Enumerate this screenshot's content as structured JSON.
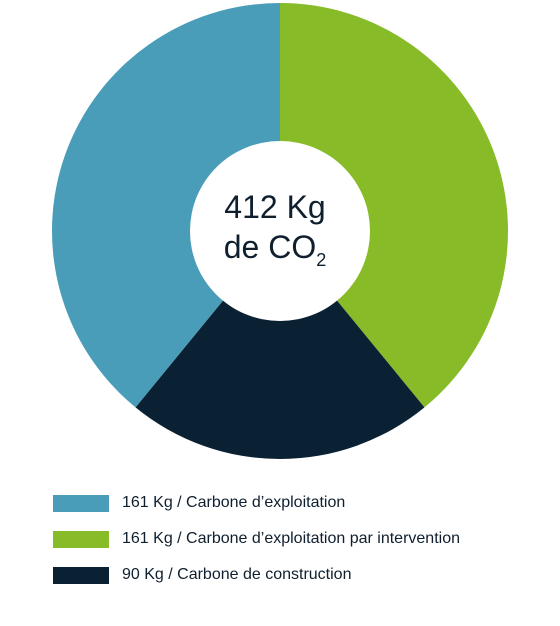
{
  "chart_data": {
    "type": "pie",
    "center_label": {
      "line1": "412 Kg",
      "line2_text": "de CO",
      "line2_subscript": "2"
    },
    "total": 412,
    "unit": "Kg",
    "series": [
      {
        "name": "Carbone d’exploitation",
        "value": 161,
        "color": "#4a9db8"
      },
      {
        "name": "Carbone d’exploitation par intervention",
        "value": 161,
        "color": "#88bb28"
      },
      {
        "name": "Carbone de construction",
        "value": 90,
        "color": "#0a2033"
      }
    ],
    "legend": {
      "items": [
        {
          "label": "161 Kg / Carbone d’exploitation",
          "color": "#4a9db8"
        },
        {
          "label": "161 Kg / Carbone d’exploitation par intervention",
          "color": "#88bb28"
        },
        {
          "label": "90 Kg / Carbone de construction",
          "color": "#0a2033"
        }
      ],
      "position": "bottom"
    }
  }
}
